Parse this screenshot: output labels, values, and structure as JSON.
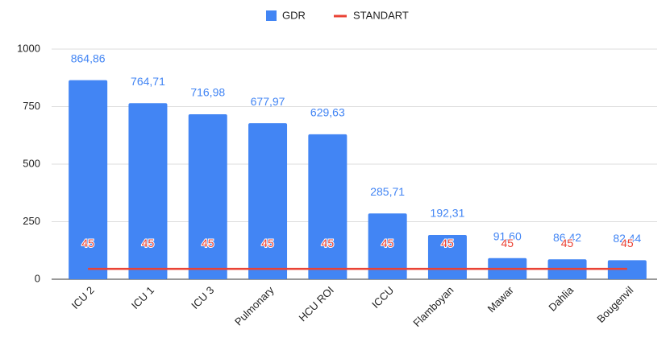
{
  "chart_data": {
    "type": "bar_line",
    "categories": [
      "ICU 2",
      "ICU 1",
      "ICU 3",
      "Pulmonary",
      "HCU ROI",
      "ICCU",
      "Flamboyan",
      "Mawar",
      "Dahlia",
      "Bougenvil"
    ],
    "series": [
      {
        "name": "GDR",
        "color": "#4285f4",
        "type": "bar",
        "values": [
          864.86,
          764.71,
          716.98,
          677.97,
          629.63,
          285.71,
          192.31,
          91.6,
          86.42,
          82.44
        ],
        "value_labels": [
          "864,86",
          "764,71",
          "716,98",
          "677,97",
          "629,63",
          "285,71",
          "192,31",
          "91,60",
          "86,42",
          "82,44"
        ]
      },
      {
        "name": "STANDART",
        "color": "#ea4335",
        "type": "line",
        "values": [
          45,
          45,
          45,
          45,
          45,
          45,
          45,
          45,
          45,
          45
        ]
      }
    ],
    "ylim": [
      0,
      1000
    ],
    "yticks": [
      0,
      250,
      500,
      750,
      1000
    ],
    "grid": true,
    "legend": "top"
  }
}
